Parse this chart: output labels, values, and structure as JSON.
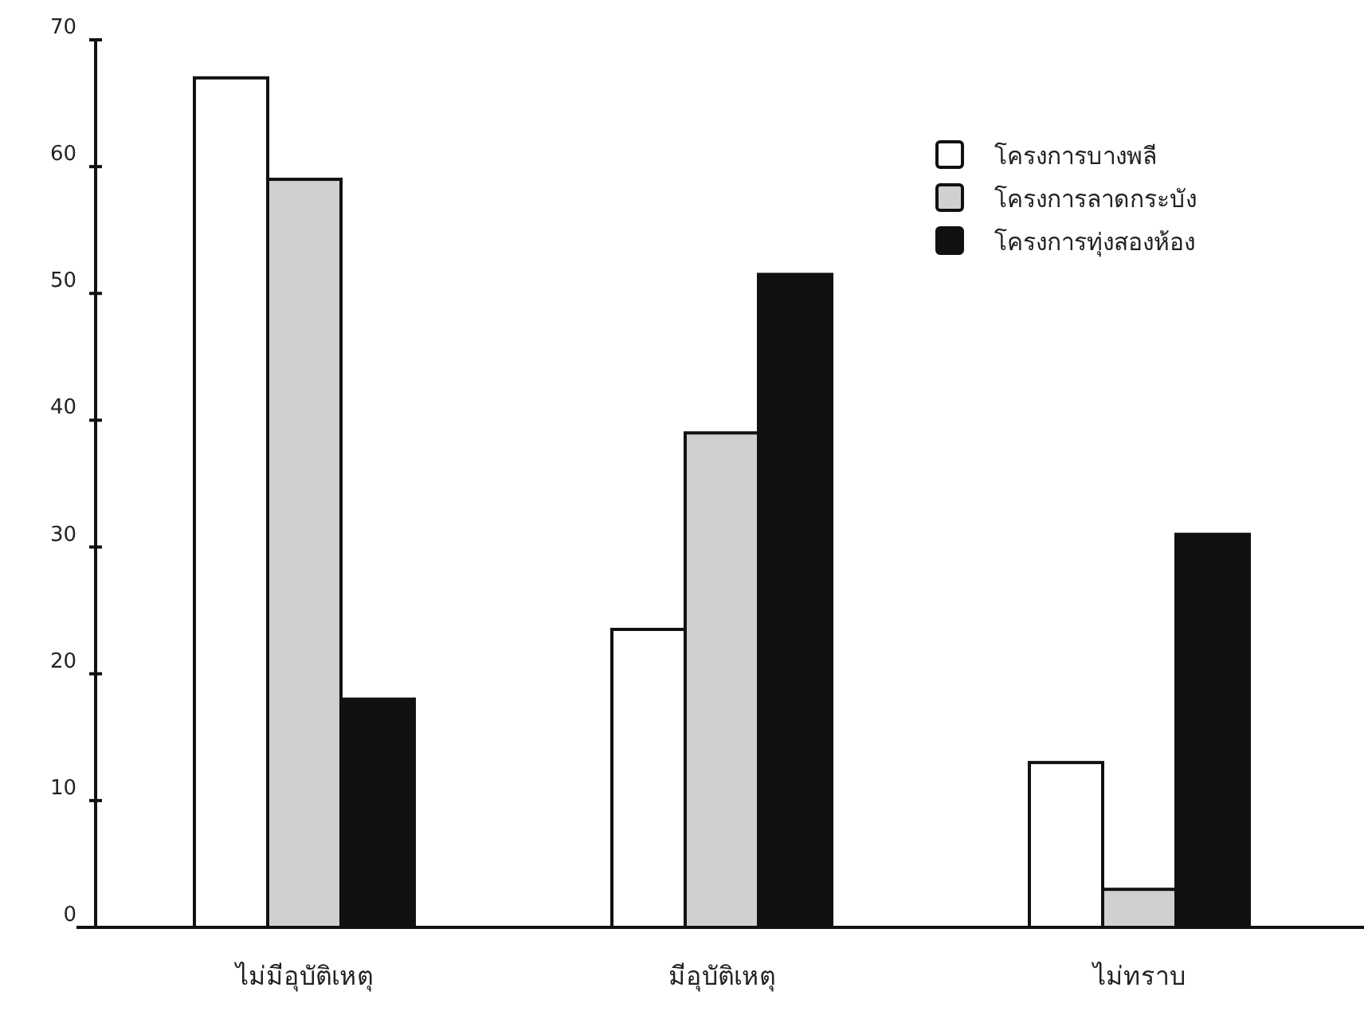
{
  "chart_data": {
    "type": "bar",
    "categories": [
      "ไม่มีอุบัติเหตุ",
      "มีอุบัติเหตุ",
      "ไม่ทราบ"
    ],
    "series": [
      {
        "name": "โครงการบางพลี",
        "color": "#ffffff",
        "values": [
          67,
          23.5,
          13
        ]
      },
      {
        "name": "โครงการลาดกระบัง",
        "color": "#d0d0d0",
        "values": [
          59,
          39,
          3
        ]
      },
      {
        "name": "โครงการทุ่งสองห้อง",
        "color": "#111111",
        "values": [
          18,
          51.5,
          31
        ]
      }
    ],
    "ylim": [
      0,
      70
    ],
    "yticks": [
      0,
      10,
      20,
      30,
      40,
      50,
      60,
      70
    ],
    "grid": false,
    "legend": "top right"
  }
}
